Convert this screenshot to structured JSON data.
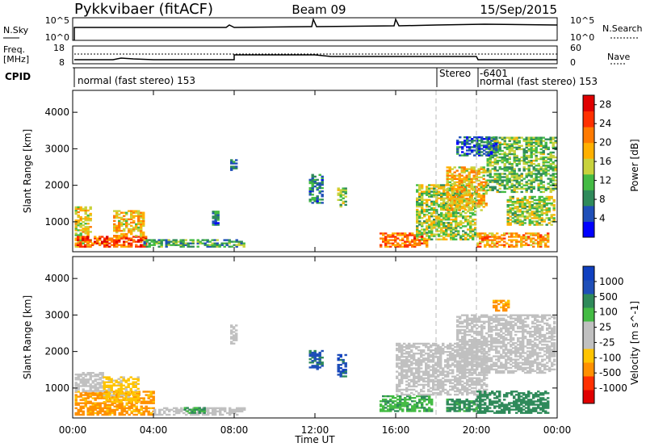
{
  "header": {
    "station": "Pykkvibaer (fitACF)",
    "beam": "Beam 09",
    "date": "15/Sep/2015"
  },
  "status_panels": {
    "nsky_label": "N.Sky",
    "nsearch_label": "N.Search",
    "freq_label_1": "Freq.",
    "freq_label_2": "[MHz]",
    "nave_label": "Nave",
    "cpid_label": "CPID",
    "nsky_ticks": [
      "10^5",
      "10^0"
    ],
    "nsearch_ticks": [
      "10^5",
      "10^0"
    ],
    "freq_ticks": [
      "18",
      "8"
    ],
    "nave_ticks": [
      "60",
      "0"
    ],
    "cpid_segments": [
      {
        "label": "normal (fast stereo) 153",
        "start_hour": 0
      },
      {
        "label": "Stereo",
        "start_hour": 18
      },
      {
        "label": "-6401",
        "start_hour": 20
      },
      {
        "label": "normal (fast stereo) 153",
        "start_hour": 20
      }
    ]
  },
  "colors": {
    "power_scale": [
      "#0000ff",
      "#1f4fb8",
      "#2f8a5a",
      "#44bb44",
      "#c8d23c",
      "#ffb000",
      "#ff7a00",
      "#ff3000",
      "#e00000"
    ],
    "velocity_scale": [
      "#e00000",
      "#ff3000",
      "#ff9000",
      "#ffc400",
      "#c0c0c0",
      "#c0c0c0",
      "#44bb44",
      "#2f8a5a",
      "#1f4fb8",
      "#1040c0"
    ]
  },
  "chart_data": [
    {
      "type": "heatmap",
      "name": "power",
      "xlabel": "",
      "ylabel": "Slant Range [km]",
      "x_ticks": [
        "00:00",
        "04:00",
        "08:00",
        "12:00",
        "16:00",
        "20:00",
        "00:00"
      ],
      "x_range_hours": [
        0,
        24
      ],
      "y_ticks": [
        1000,
        2000,
        3000,
        4000
      ],
      "y_range_km": [
        180,
        4600
      ],
      "colorbar_label": "Power [dB]",
      "colorbar_ticks": [
        4,
        8,
        12,
        16,
        20,
        24,
        28
      ],
      "colorbar_range": [
        0,
        30
      ],
      "regions": [
        {
          "t": [
            0.1,
            0.9
          ],
          "r": [
            300,
            1400
          ],
          "v": 16
        },
        {
          "t": [
            0.2,
            3.6
          ],
          "r": [
            300,
            600
          ],
          "v": 24
        },
        {
          "t": [
            2.0,
            3.5
          ],
          "r": [
            600,
            1300
          ],
          "v": 18
        },
        {
          "t": [
            3.5,
            8.5
          ],
          "r": [
            300,
            500
          ],
          "v": 10
        },
        {
          "t": [
            7.8,
            8.1
          ],
          "r": [
            2400,
            2700
          ],
          "v": 8
        },
        {
          "t": [
            6.9,
            7.2
          ],
          "r": [
            900,
            1300
          ],
          "v": 8
        },
        {
          "t": [
            11.7,
            12.3
          ],
          "r": [
            1500,
            2300
          ],
          "v": 8
        },
        {
          "t": [
            13.1,
            13.5
          ],
          "r": [
            1400,
            1900
          ],
          "v": 12
        },
        {
          "t": [
            15.2,
            17.5
          ],
          "r": [
            300,
            700
          ],
          "v": 22
        },
        {
          "t": [
            17.0,
            20.0
          ],
          "r": [
            500,
            2000
          ],
          "v": 14
        },
        {
          "t": [
            18.5,
            20.5
          ],
          "r": [
            1300,
            2500
          ],
          "v": 18
        },
        {
          "t": [
            20.0,
            23.5
          ],
          "r": [
            300,
            700
          ],
          "v": 20
        },
        {
          "t": [
            21.5,
            23.9
          ],
          "r": [
            900,
            1700
          ],
          "v": 14
        },
        {
          "t": [
            20.5,
            23.9
          ],
          "r": [
            1800,
            3300
          ],
          "v": 12
        },
        {
          "t": [
            19.0,
            21.0
          ],
          "r": [
            2800,
            3300
          ],
          "v": 6
        }
      ]
    },
    {
      "type": "heatmap",
      "name": "velocity",
      "xlabel": "Time UT",
      "ylabel": "Slant Range [km]",
      "x_ticks": [
        "00:00",
        "04:00",
        "08:00",
        "12:00",
        "16:00",
        "20:00",
        "00:00"
      ],
      "x_range_hours": [
        0,
        24
      ],
      "y_ticks": [
        1000,
        2000,
        3000,
        4000
      ],
      "y_range_km": [
        180,
        4600
      ],
      "colorbar_label": "Velocity [m s^-1]",
      "colorbar_ticks": [
        1000,
        500,
        100,
        25,
        -25,
        -100,
        -500,
        -1000
      ],
      "regions": [
        {
          "t": [
            0.1,
            4.0
          ],
          "r": [
            250,
            900
          ],
          "v": -150
        },
        {
          "t": [
            0.1,
            1.5
          ],
          "r": [
            900,
            1400
          ],
          "v": 0
        },
        {
          "t": [
            1.5,
            3.2
          ],
          "r": [
            600,
            1300
          ],
          "v": -40
        },
        {
          "t": [
            4.0,
            8.5
          ],
          "r": [
            250,
            450
          ],
          "v": 0
        },
        {
          "t": [
            5.5,
            6.5
          ],
          "r": [
            300,
            450
          ],
          "v": 120
        },
        {
          "t": [
            7.8,
            8.1
          ],
          "r": [
            2200,
            2700
          ],
          "v": 0
        },
        {
          "t": [
            11.7,
            12.3
          ],
          "r": [
            1500,
            2000
          ],
          "v": 600
        },
        {
          "t": [
            13.1,
            13.5
          ],
          "r": [
            1300,
            1900
          ],
          "v": 800
        },
        {
          "t": [
            15.2,
            17.8
          ],
          "r": [
            350,
            800
          ],
          "v": 80
        },
        {
          "t": [
            16.0,
            20.5
          ],
          "r": [
            800,
            2200
          ],
          "v": 0
        },
        {
          "t": [
            19.0,
            23.9
          ],
          "r": [
            1400,
            3000
          ],
          "v": 0
        },
        {
          "t": [
            20.0,
            23.5
          ],
          "r": [
            300,
            900
          ],
          "v": 300
        },
        {
          "t": [
            18.5,
            20.0
          ],
          "r": [
            350,
            700
          ],
          "v": 150
        },
        {
          "t": [
            20.8,
            21.6
          ],
          "r": [
            3100,
            3400
          ],
          "v": -120
        }
      ]
    }
  ]
}
